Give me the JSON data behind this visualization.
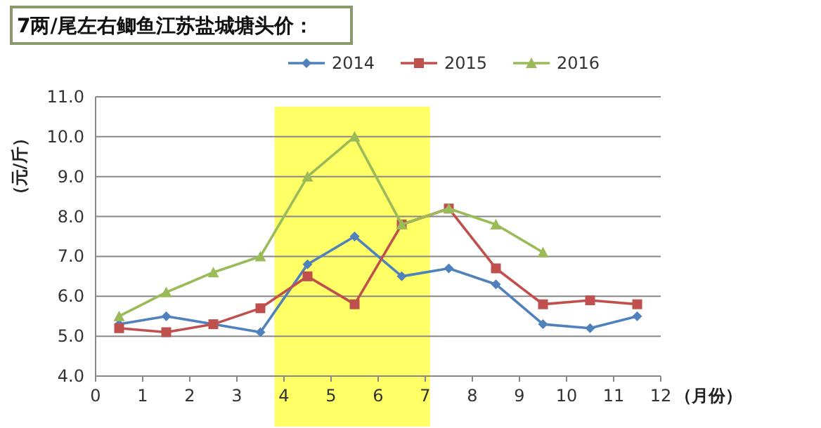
{
  "chart_data": {
    "type": "line",
    "title": "7两/尾左右鲫鱼江苏盐城塘头价：",
    "ylabel": "（元/斤）",
    "xlabel": "（月份）",
    "x": [
      0.5,
      1.5,
      2.5,
      3.5,
      4.5,
      5.5,
      6.5,
      7.5,
      8.5,
      9.5,
      10.5,
      11.5
    ],
    "series": [
      {
        "name": "2014",
        "color": "#4f81bd",
        "marker": "diamond",
        "values": [
          5.3,
          5.5,
          5.3,
          5.1,
          6.8,
          7.5,
          6.5,
          6.7,
          6.3,
          5.3,
          5.2,
          5.5
        ]
      },
      {
        "name": "2015",
        "color": "#c0504d",
        "marker": "square",
        "values": [
          5.2,
          5.1,
          5.3,
          5.7,
          6.5,
          5.8,
          7.8,
          8.2,
          6.7,
          5.8,
          5.9,
          5.8
        ]
      },
      {
        "name": "2016",
        "color": "#9bbb59",
        "marker": "triangle",
        "values": [
          5.5,
          6.1,
          6.6,
          7.0,
          9.0,
          10.0,
          7.8,
          8.2,
          7.8,
          7.1,
          null,
          null
        ]
      }
    ],
    "xlim": [
      0,
      12
    ],
    "xticks": [
      0,
      1,
      2,
      3,
      4,
      5,
      6,
      7,
      8,
      9,
      10,
      11,
      12
    ],
    "ylim": [
      4,
      11
    ],
    "yticks": [
      {
        "value": 4,
        "label": "4.0"
      },
      {
        "value": 5,
        "label": "5.0"
      },
      {
        "value": 6,
        "label": "6.0"
      },
      {
        "value": 7,
        "label": "7.0"
      },
      {
        "value": 8,
        "label": "8.0"
      },
      {
        "value": 9,
        "label": "9.0"
      },
      {
        "value": 10,
        "label": "10.0"
      },
      {
        "value": 11,
        "label": "11.0"
      }
    ],
    "bands": [
      {
        "axis": "x",
        "from": 3.8,
        "to": 7.1,
        "color": "#ffff66"
      }
    ],
    "grid": "y",
    "legend": "top",
    "line_style": "solid"
  }
}
